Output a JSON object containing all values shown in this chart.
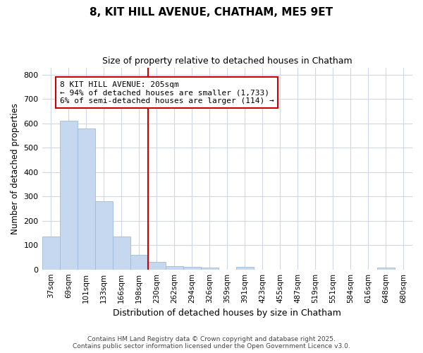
{
  "title1": "8, KIT HILL AVENUE, CHATHAM, ME5 9ET",
  "title2": "Size of property relative to detached houses in Chatham",
  "xlabel": "Distribution of detached houses by size in Chatham",
  "ylabel": "Number of detached properties",
  "categories": [
    "37sqm",
    "69sqm",
    "101sqm",
    "133sqm",
    "166sqm",
    "198sqm",
    "230sqm",
    "262sqm",
    "294sqm",
    "326sqm",
    "359sqm",
    "391sqm",
    "423sqm",
    "455sqm",
    "487sqm",
    "519sqm",
    "551sqm",
    "584sqm",
    "616sqm",
    "648sqm",
    "680sqm"
  ],
  "values": [
    135,
    610,
    580,
    280,
    135,
    60,
    30,
    15,
    10,
    8,
    0,
    10,
    0,
    0,
    0,
    0,
    0,
    0,
    0,
    8,
    0
  ],
  "bar_color": "#c5d8f0",
  "bar_edge_color": "#a0bcd8",
  "vline_x": 5.5,
  "vline_color": "#cc0000",
  "annotation_text": "8 KIT HILL AVENUE: 205sqm\n← 94% of detached houses are smaller (1,733)\n6% of semi-detached houses are larger (114) →",
  "annotation_box_color": "#ffffff",
  "annotation_box_edge": "#cc0000",
  "ylim": [
    0,
    830
  ],
  "yticks": [
    0,
    100,
    200,
    300,
    400,
    500,
    600,
    700,
    800
  ],
  "footer1": "Contains HM Land Registry data © Crown copyright and database right 2025.",
  "footer2": "Contains public sector information licensed under the Open Government Licence v3.0.",
  "bg_color": "#ffffff",
  "plot_bg_color": "#ffffff",
  "grid_color": "#d0d8e8"
}
